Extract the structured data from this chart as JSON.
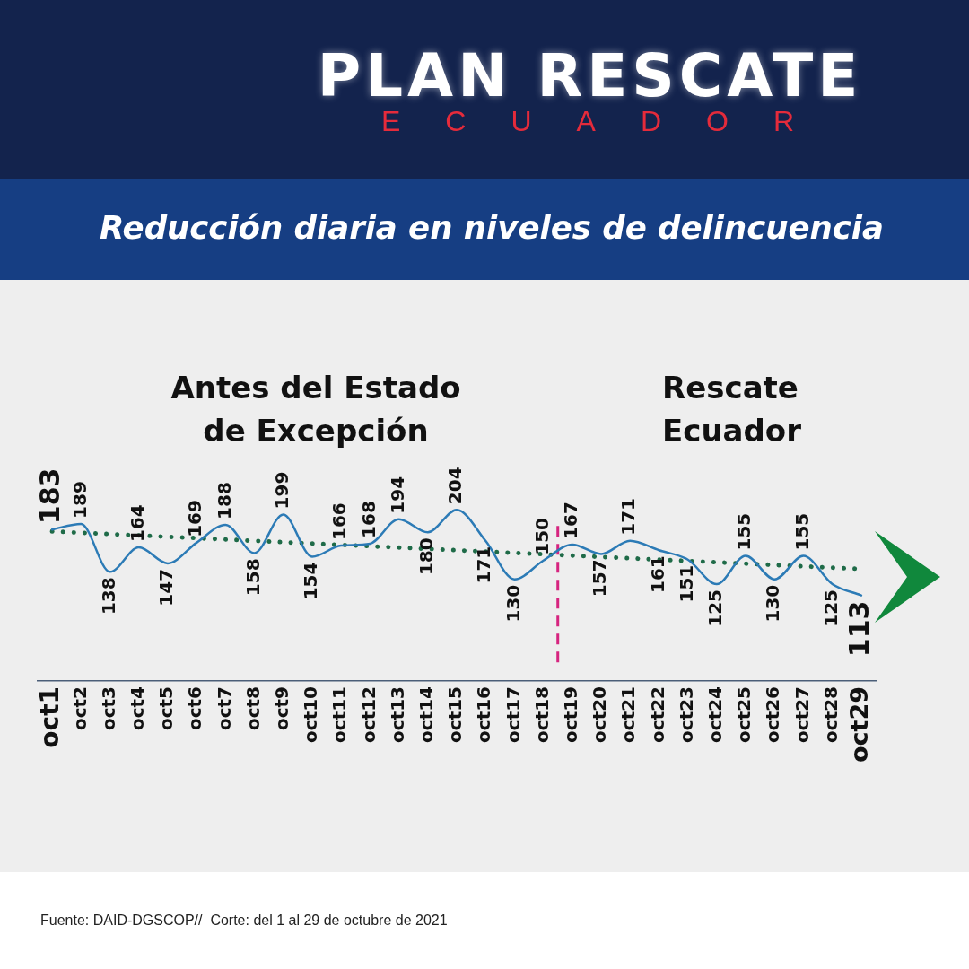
{
  "chart_data": {
    "type": "line",
    "title": "PLAN RESCATE",
    "subtitle": "ECUADOR",
    "categories": [
      "oct1",
      "oct2",
      "oct3",
      "oct4",
      "oct5",
      "oct6",
      "oct7",
      "oct8",
      "oct9",
      "oct10",
      "oct11",
      "oct12",
      "oct13",
      "oct14",
      "oct15",
      "oct16",
      "oct17",
      "oct18",
      "oct19",
      "oct20",
      "oct21",
      "oct22",
      "oct23",
      "oct24",
      "oct25",
      "oct26",
      "oct27",
      "oct28",
      "oct29"
    ],
    "series": [
      {
        "color": "#2c7bb6",
        "values": [
          183,
          189,
          138,
          164,
          147,
          169,
          188,
          158,
          199,
          154,
          166,
          168,
          194,
          180,
          204,
          171,
          130,
          150,
          167,
          157,
          171,
          161,
          151,
          125,
          155,
          130,
          155,
          125,
          113
        ],
        "value_labels": [
          "183",
          "189",
          "138",
          "164",
          "147",
          "169",
          "188",
          "158",
          "199",
          "154",
          "166",
          "168",
          "194",
          "180",
          "204",
          "171",
          "130",
          "150",
          "167",
          "157",
          "171",
          "161",
          "151",
          "125",
          "155",
          "130",
          "155",
          "125",
          "113"
        ]
      },
      {
        "color": "#1f6b48",
        "line_style": "dotted",
        "x": [
          "oct1",
          "oct29"
        ],
        "values": [
          181,
          141
        ]
      }
    ],
    "ref_lines": [
      {
        "axis": "x",
        "value": "oct19",
        "color": "#d6247f",
        "line_style": "dashed"
      }
    ],
    "annotations": [
      "Reducción diaria en niveles de delincuencia",
      "Antes del Estado de Excepción",
      "Rescate Ecuador",
      "Fuente: DAID-DGSCOP//  Corte: del 1 al 29 de octubre de 2021"
    ],
    "marker": "none",
    "line_style": "solid",
    "tick_labels": "x"
  }
}
